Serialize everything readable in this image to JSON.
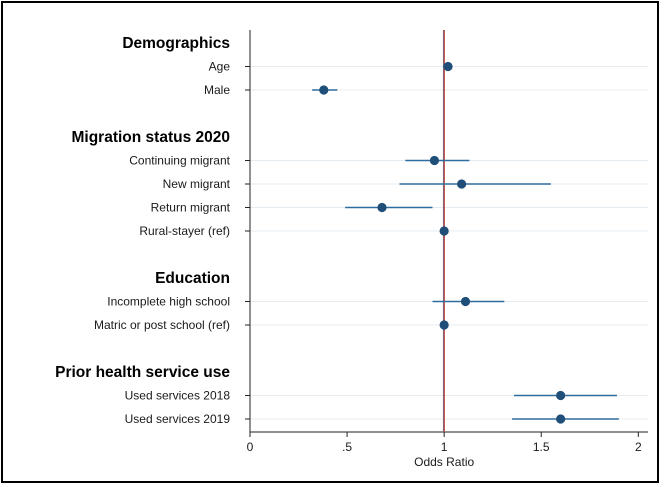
{
  "chart_data": {
    "type": "scatter",
    "xlabel": "Odds Ratio",
    "xlim": [
      0,
      2.05
    ],
    "xticks": [
      {
        "value": 0,
        "label": "0"
      },
      {
        "value": 0.5,
        "label": ".5"
      },
      {
        "value": 1,
        "label": "1"
      },
      {
        "value": 1.5,
        "label": "1.5"
      },
      {
        "value": 2,
        "label": "2"
      }
    ],
    "reference_line": 1,
    "reference_line_color": "#c0504d",
    "marker_color": "#1f4e79",
    "ci_color": "#2e6b9e",
    "grid": true,
    "rows": [
      {
        "kind": "header",
        "label": "Demographics"
      },
      {
        "kind": "item",
        "label": "Age",
        "or": 1.02,
        "lo": 1.01,
        "hi": 1.03
      },
      {
        "kind": "item",
        "label": "Male",
        "or": 0.38,
        "lo": 0.32,
        "hi": 0.45
      },
      {
        "kind": "gap"
      },
      {
        "kind": "header",
        "label": "Migration status 2020"
      },
      {
        "kind": "item",
        "label": "Continuing migrant ",
        "or": 0.95,
        "lo": 0.8,
        "hi": 1.13
      },
      {
        "kind": "item",
        "label": "New migrant",
        "or": 1.09,
        "lo": 0.77,
        "hi": 1.55
      },
      {
        "kind": "item",
        "label": "Return migrant",
        "or": 0.68,
        "lo": 0.49,
        "hi": 0.94
      },
      {
        "kind": "item",
        "label": "Rural-stayer (ref)",
        "or": 1.0,
        "lo": 1.0,
        "hi": 1.0
      },
      {
        "kind": "gap"
      },
      {
        "kind": "header",
        "label": "Education"
      },
      {
        "kind": "item",
        "label": "Incomplete high school",
        "or": 1.11,
        "lo": 0.94,
        "hi": 1.31
      },
      {
        "kind": "item",
        "label": "Matric or post school (ref)",
        "or": 1.0,
        "lo": 1.0,
        "hi": 1.0
      },
      {
        "kind": "gap"
      },
      {
        "kind": "header",
        "label": "Prior health service use"
      },
      {
        "kind": "item",
        "label": "Used services 2018",
        "or": 1.6,
        "lo": 1.36,
        "hi": 1.89
      },
      {
        "kind": "item",
        "label": "Used services 2019",
        "or": 1.6,
        "lo": 1.35,
        "hi": 1.9
      }
    ]
  }
}
